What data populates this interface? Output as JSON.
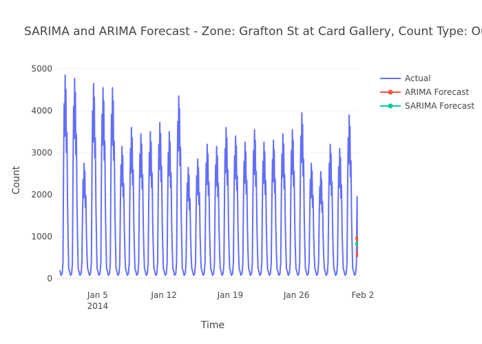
{
  "chart_data": {
    "type": "line",
    "title": "SARIMA and ARIMA Forecast - Zone: Grafton St at Card Gallery, Count Type: OutCount",
    "xlabel": "Time",
    "ylabel": "Count",
    "xlim": [
      "2013-12-31T12:00",
      "2014-02-01T12:00"
    ],
    "ylim": [
      0,
      5000
    ],
    "x_ticks": [
      {
        "date": "2014-01-05",
        "label": "Jan 5",
        "sublabel": "2014"
      },
      {
        "date": "2014-01-12",
        "label": "Jan 12",
        "sublabel": ""
      },
      {
        "date": "2014-01-19",
        "label": "Jan 19",
        "sublabel": ""
      },
      {
        "date": "2014-01-26",
        "label": "Jan 26",
        "sublabel": ""
      },
      {
        "date": "2014-02-02",
        "label": "Feb 2",
        "sublabel": ""
      }
    ],
    "y_ticks": [
      0,
      1000,
      2000,
      3000,
      4000,
      5000
    ],
    "grid": true,
    "legend_position": "top-right",
    "series": [
      {
        "name": "Actual",
        "color": "#636efa",
        "mode": "lines",
        "daily_peaks": [
          {
            "date": "2014-01-01",
            "peak": 4850
          },
          {
            "date": "2014-01-02",
            "peak": 4770
          },
          {
            "date": "2014-01-03",
            "peak": 2750
          },
          {
            "date": "2014-01-04",
            "peak": 4650
          },
          {
            "date": "2014-01-05",
            "peak": 4550
          },
          {
            "date": "2014-01-06",
            "peak": 4550
          },
          {
            "date": "2014-01-07",
            "peak": 3150
          },
          {
            "date": "2014-01-08",
            "peak": 3600
          },
          {
            "date": "2014-01-09",
            "peak": 3450
          },
          {
            "date": "2014-01-10",
            "peak": 3500
          },
          {
            "date": "2014-01-11",
            "peak": 3720
          },
          {
            "date": "2014-01-12",
            "peak": 3500
          },
          {
            "date": "2014-01-13",
            "peak": 4350
          },
          {
            "date": "2014-01-14",
            "peak": 2650
          },
          {
            "date": "2014-01-15",
            "peak": 2850
          },
          {
            "date": "2014-01-16",
            "peak": 3200
          },
          {
            "date": "2014-01-17",
            "peak": 3150
          },
          {
            "date": "2014-01-18",
            "peak": 3600
          },
          {
            "date": "2014-01-19",
            "peak": 3400
          },
          {
            "date": "2014-01-20",
            "peak": 3250
          },
          {
            "date": "2014-01-21",
            "peak": 3550
          },
          {
            "date": "2014-01-22",
            "peak": 3250
          },
          {
            "date": "2014-01-23",
            "peak": 3300
          },
          {
            "date": "2014-01-24",
            "peak": 3450
          },
          {
            "date": "2014-01-25",
            "peak": 3550
          },
          {
            "date": "2014-01-26",
            "peak": 3950
          },
          {
            "date": "2014-01-27",
            "peak": 2750
          },
          {
            "date": "2014-01-28",
            "peak": 2550
          },
          {
            "date": "2014-01-29",
            "peak": 3200
          },
          {
            "date": "2014-01-30",
            "peak": 3100
          },
          {
            "date": "2014-01-31",
            "peak": 3900
          },
          {
            "date": "2014-02-01",
            "peak": 3550
          }
        ],
        "daily_trough": 80,
        "end_point": {
          "date": "2014-02-01T10:00",
          "value": 1000
        }
      },
      {
        "name": "ARIMA Forecast",
        "color": "#ef553b",
        "mode": "lines+markers",
        "points": [
          {
            "x": "2014-02-01T11:00",
            "y": 960
          },
          {
            "x": "2014-02-01T12:00",
            "y": 570
          }
        ]
      },
      {
        "name": "SARIMA Forecast",
        "color": "#00cc96",
        "mode": "lines+markers",
        "points": [
          {
            "x": "2014-02-01T11:00",
            "y": 830
          },
          {
            "x": "2014-02-01T12:00",
            "y": 830
          }
        ]
      }
    ]
  }
}
